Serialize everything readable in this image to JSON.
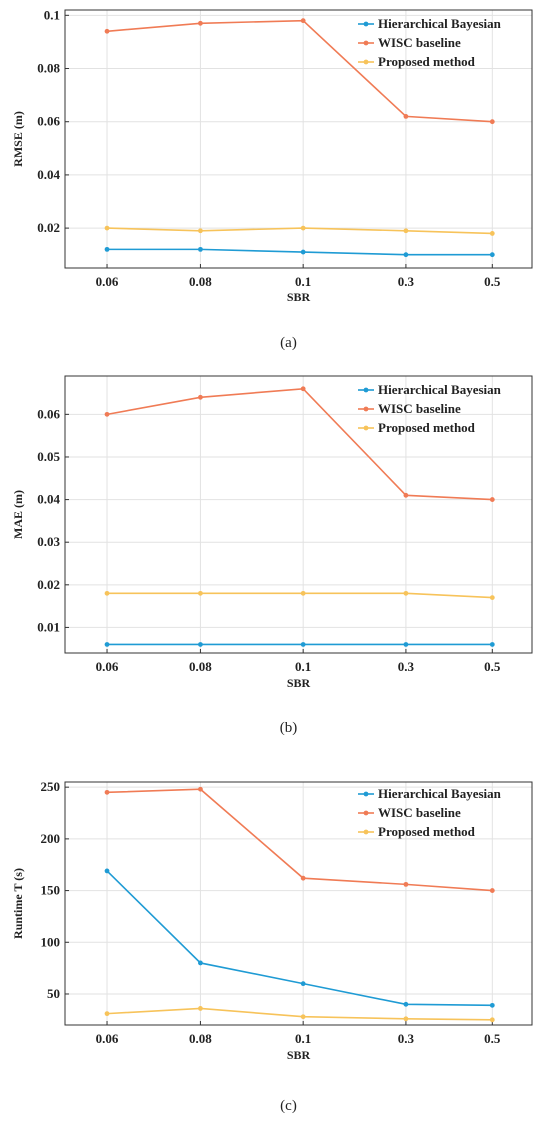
{
  "chart_data": [
    {
      "type": "line",
      "caption": "(a)",
      "xlabel": "SBR",
      "ylabel": "RMSE (m)",
      "categories": [
        "0.06",
        "0.08",
        "0.1",
        "0.3",
        "0.5"
      ],
      "ylim": [
        0.005,
        0.102
      ],
      "yticks": [
        0.02,
        0.04,
        0.06,
        0.08,
        0.1
      ],
      "ytick_labels": [
        "0.02",
        "0.04",
        "0.06",
        "0.08",
        "0.1"
      ],
      "grid": true,
      "legend_position": "top-right",
      "series": [
        {
          "name": "Hierarchical Bayesian",
          "color": "#1f9bd4",
          "values": [
            0.012,
            0.012,
            0.011,
            0.01,
            0.01
          ]
        },
        {
          "name": "WISC baseline",
          "color": "#f07b55",
          "values": [
            0.094,
            0.097,
            0.098,
            0.062,
            0.06
          ]
        },
        {
          "name": "Proposed method",
          "color": "#f7c35a",
          "values": [
            0.02,
            0.019,
            0.02,
            0.019,
            0.018
          ]
        }
      ]
    },
    {
      "type": "line",
      "caption": "(b)",
      "xlabel": "SBR",
      "ylabel": "MAE (m)",
      "categories": [
        "0.06",
        "0.08",
        "0.1",
        "0.3",
        "0.5"
      ],
      "ylim": [
        0.004,
        0.069
      ],
      "yticks": [
        0.01,
        0.02,
        0.03,
        0.04,
        0.05,
        0.06
      ],
      "ytick_labels": [
        "0.01",
        "0.02",
        "0.03",
        "0.04",
        "0.05",
        "0.06"
      ],
      "grid": true,
      "legend_position": "top-right",
      "series": [
        {
          "name": "Hierarchical Bayesian",
          "color": "#1f9bd4",
          "values": [
            0.006,
            0.006,
            0.006,
            0.006,
            0.006
          ]
        },
        {
          "name": "WISC baseline",
          "color": "#f07b55",
          "values": [
            0.06,
            0.064,
            0.066,
            0.041,
            0.04
          ]
        },
        {
          "name": "Proposed method",
          "color": "#f7c35a",
          "values": [
            0.018,
            0.018,
            0.018,
            0.018,
            0.017
          ]
        }
      ]
    },
    {
      "type": "line",
      "caption": "(c)",
      "xlabel": "SBR",
      "ylabel": "Runtime T (s)",
      "categories": [
        "0.06",
        "0.08",
        "0.1",
        "0.3",
        "0.5"
      ],
      "ylim": [
        20,
        255
      ],
      "yticks": [
        50,
        100,
        150,
        200,
        250
      ],
      "ytick_labels": [
        "50",
        "100",
        "150",
        "200",
        "250"
      ],
      "grid": true,
      "legend_position": "top-right",
      "series": [
        {
          "name": "Hierarchical Bayesian",
          "color": "#1f9bd4",
          "values": [
            169,
            80,
            60,
            40,
            39
          ]
        },
        {
          "name": "WISC baseline",
          "color": "#f07b55",
          "values": [
            245,
            248,
            162,
            156,
            150
          ]
        },
        {
          "name": "Proposed method",
          "color": "#f7c35a",
          "values": [
            31,
            36,
            28,
            26,
            25
          ]
        }
      ]
    }
  ]
}
